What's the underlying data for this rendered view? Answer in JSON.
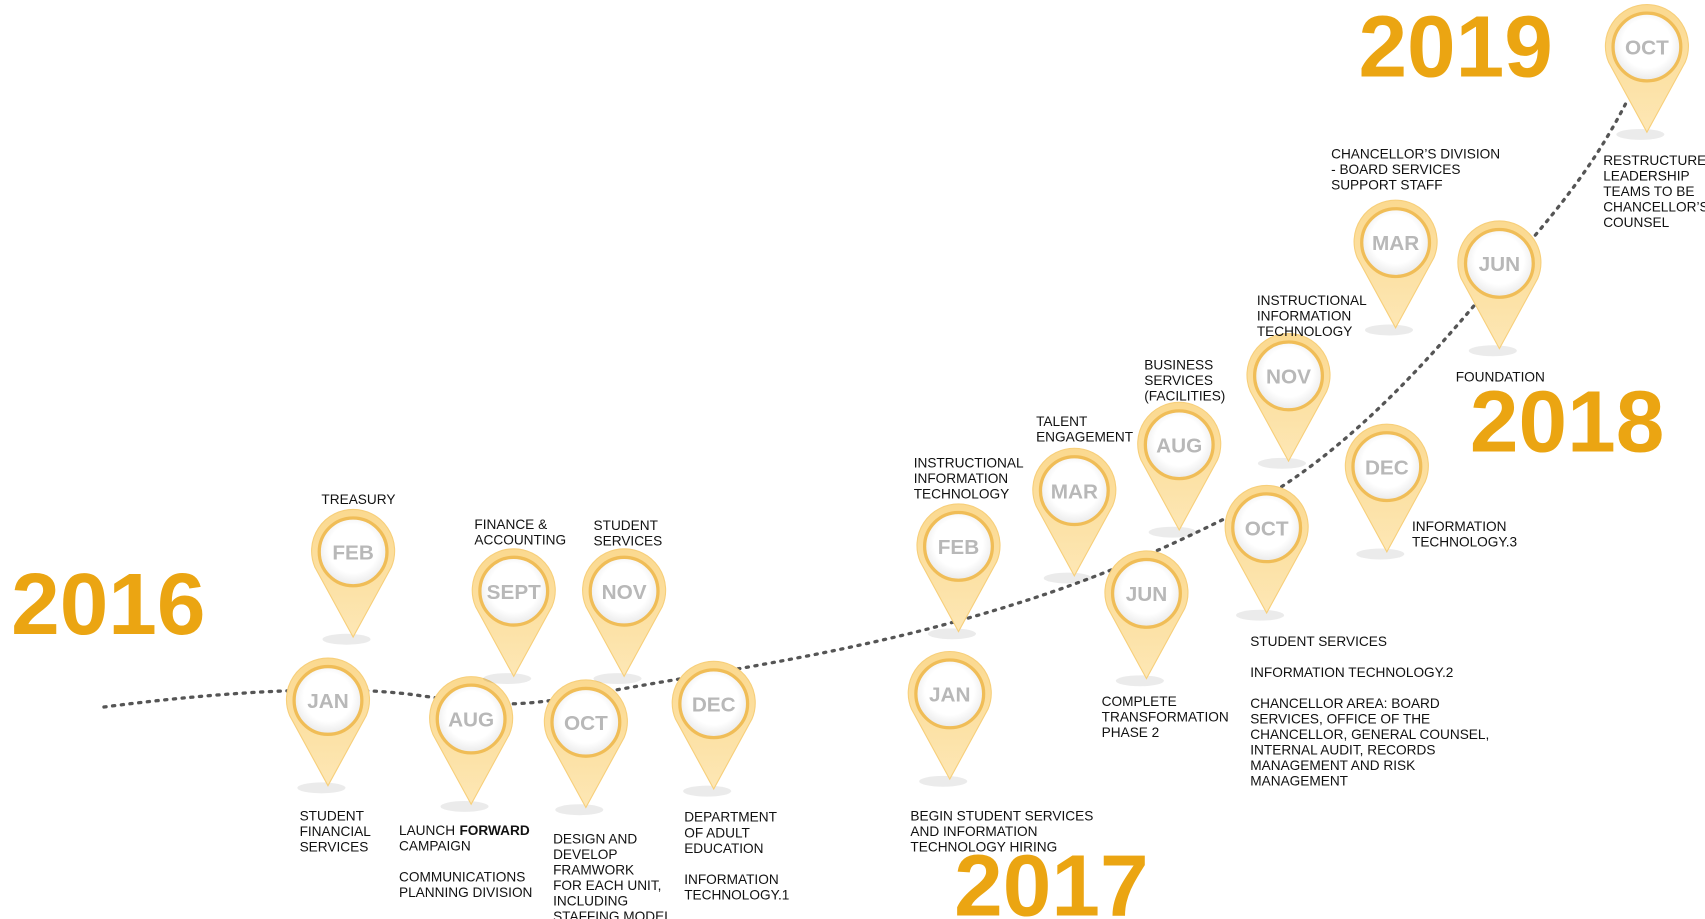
{
  "years": [
    "2016",
    "2017",
    "2018",
    "2019"
  ],
  "pins": [
    {
      "month": "JAN",
      "captions": [
        [
          "STUDENT",
          "FINANCIAL",
          "SERVICES"
        ]
      ]
    },
    {
      "month": "FEB",
      "captions": [
        [
          "TREASURY"
        ]
      ]
    },
    {
      "month": "AUG",
      "captions": [
        [
          [
            "LAUNCH",
            {
              "text": "FORWARD",
              "bold": true
            }
          ],
          "CAMPAIGN"
        ],
        [
          "COMMUNICATIONS",
          "PLANNING DIVISION"
        ]
      ]
    },
    {
      "month": "SEPT",
      "captions": [
        [
          "FINANCE &",
          "ACCOUNTING"
        ]
      ]
    },
    {
      "month": "OCT",
      "captions": [
        [
          "DESIGN AND",
          "DEVELOP",
          "FRAMWORK",
          "FOR EACH UNIT,",
          "INCLUDING",
          "STAFFING MODEL"
        ]
      ]
    },
    {
      "month": "NOV",
      "captions": [
        [
          "STUDENT",
          "SERVICES"
        ]
      ]
    },
    {
      "month": "DEC",
      "captions": [
        [
          "DEPARTMENT",
          "OF ADULT",
          "EDUCATION"
        ],
        [
          "INFORMATION",
          "TECHNOLOGY.1"
        ]
      ]
    },
    {
      "month": "JAN",
      "captions": [
        [
          "BEGIN STUDENT SERVICES",
          "AND INFORMATION",
          "TECHNOLOGY HIRING"
        ]
      ]
    },
    {
      "month": "FEB",
      "captions": [
        [
          "INSTRUCTIONAL",
          "INFORMATION",
          "TECHNOLOGY"
        ]
      ]
    },
    {
      "month": "MAR",
      "captions": [
        [
          "TALENT",
          "ENGAGEMENT"
        ]
      ]
    },
    {
      "month": "JUN",
      "captions": [
        [
          "COMPLETE",
          "TRANSFORMATION",
          "PHASE 2"
        ]
      ]
    },
    {
      "month": "AUG",
      "captions": [
        [
          "BUSINESS",
          "SERVICES",
          "(FACILITIES)"
        ]
      ]
    },
    {
      "month": "OCT",
      "captions": [
        [
          "STUDENT SERVICES"
        ],
        [
          "INFORMATION TECHNOLOGY.2"
        ],
        [
          "CHANCELLOR AREA: BOARD",
          "SERVICES, OFFICE OF THE",
          "CHANCELLOR, GENERAL COUNSEL,",
          "INTERNAL AUDIT, RECORDS",
          "MANAGEMENT AND RISK",
          "MANAGEMENT"
        ]
      ]
    },
    {
      "month": "NOV",
      "captions": [
        [
          "INSTRUCTIONAL",
          "INFORMATION",
          "TECHNOLOGY"
        ]
      ]
    },
    {
      "month": "MAR",
      "captions": [
        [
          "CHANCELLOR’S DIVISION",
          "- BOARD SERVICES",
          "SUPPORT STAFF"
        ]
      ]
    },
    {
      "month": "JUN",
      "captions": [
        [
          "FOUNDATION"
        ]
      ]
    },
    {
      "month": "DEC",
      "captions": [
        [
          "INFORMATION",
          "TECHNOLOGY.3"
        ]
      ]
    },
    {
      "month": "OCT",
      "captions": [
        [
          "RESTRUCTURED",
          "LEADERSHIP",
          "TEAMS TO BE",
          "CHANCELLOR’S",
          "COUNSEL"
        ]
      ]
    }
  ]
}
